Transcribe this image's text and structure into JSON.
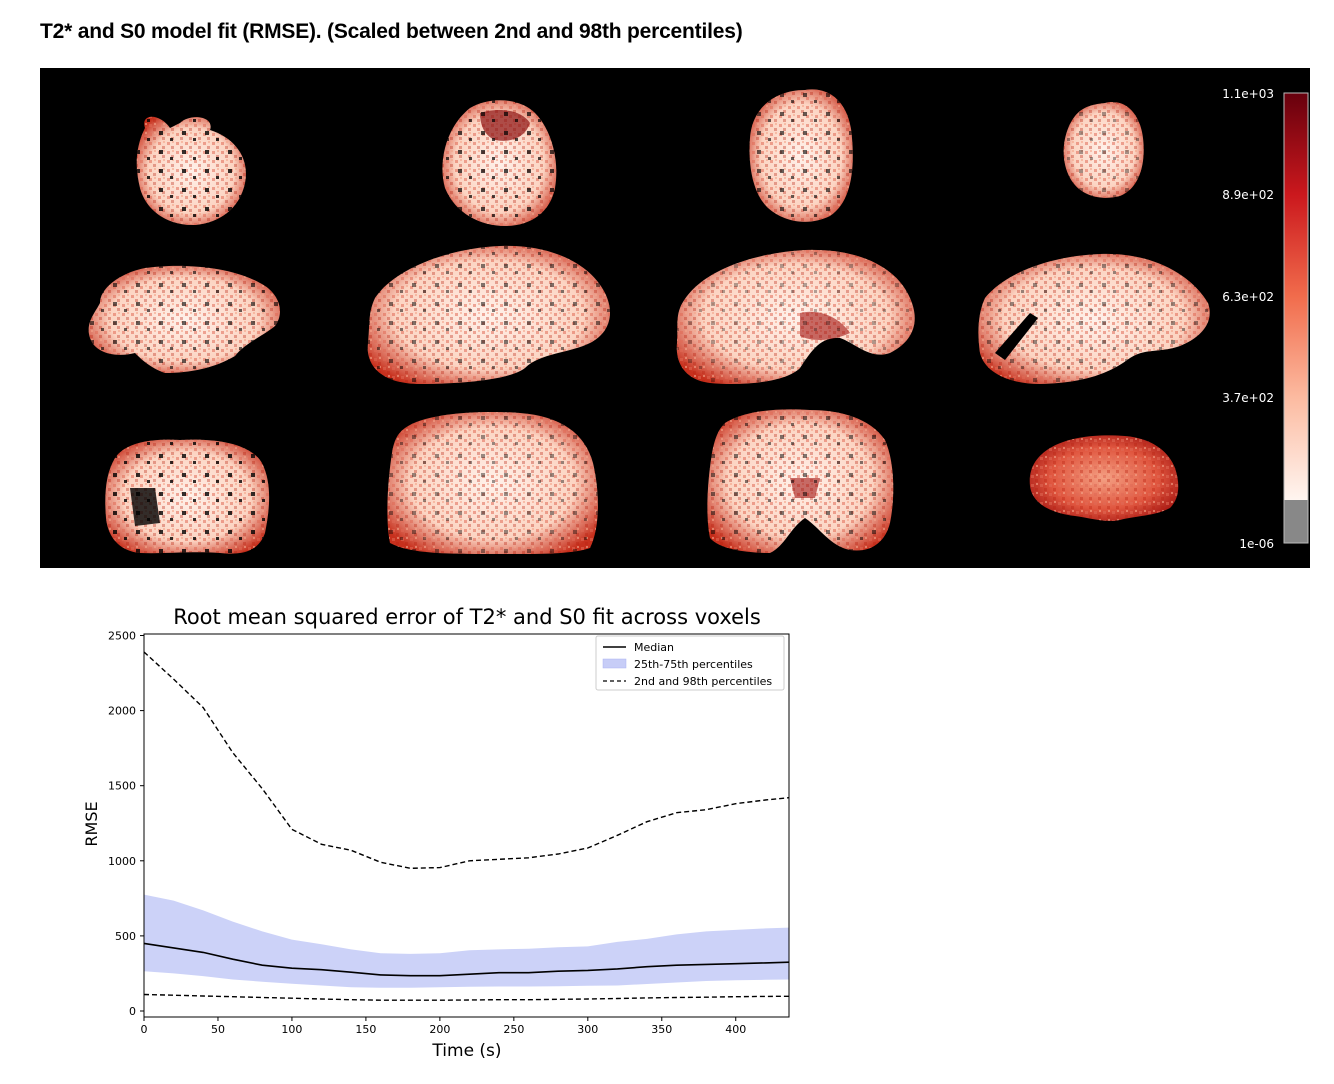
{
  "page": {
    "title": "T2* and S0 model fit (RMSE). (Scaled between 2nd and 98th percentiles)"
  },
  "brain_mosaic": {
    "colormap": "Reds",
    "colorbar_labels": [
      "1.1e+03",
      "8.9e+02",
      "6.3e+02",
      "3.7e+02",
      "1e-06"
    ],
    "colors": {
      "background": "#000000",
      "dark_red": "#67000d",
      "mid_red": "#cb181d",
      "light": "#fff5f0",
      "masked": "#888888"
    },
    "rows": [
      "axial",
      "sagittal",
      "coronal"
    ],
    "columns": 4
  },
  "chart_data": {
    "type": "line",
    "title": "Root mean squared error of T2* and S0 fit across voxels",
    "xlabel": "Time (s)",
    "ylabel": "RMSE",
    "xlim": [
      0,
      436
    ],
    "ylim": [
      -40,
      2510
    ],
    "xticks": [
      0,
      50,
      100,
      150,
      200,
      250,
      300,
      350,
      400
    ],
    "yticks": [
      0,
      500,
      1000,
      1500,
      2000,
      2500
    ],
    "grid": false,
    "legend_position": "top-right",
    "legend": [
      "Median",
      "25th-75th percentiles",
      "2nd and 98th percentiles"
    ],
    "x": [
      0,
      20,
      40,
      60,
      80,
      100,
      120,
      140,
      160,
      180,
      200,
      220,
      240,
      260,
      280,
      300,
      320,
      340,
      360,
      380,
      400,
      420,
      436
    ],
    "series": [
      {
        "name": "Median",
        "style": "solid",
        "color": "#000000",
        "values": [
          450,
          420,
          390,
          345,
          305,
          285,
          275,
          258,
          240,
          235,
          235,
          245,
          255,
          255,
          265,
          270,
          280,
          295,
          305,
          310,
          315,
          320,
          325
        ]
      },
      {
        "name": "25th percentile",
        "style": "band-lower",
        "color": "#c7cdf7",
        "values": [
          265,
          250,
          232,
          210,
          195,
          182,
          170,
          158,
          155,
          155,
          158,
          162,
          163,
          163,
          165,
          168,
          170,
          180,
          190,
          200,
          205,
          208,
          210
        ]
      },
      {
        "name": "75th percentile",
        "style": "band-upper",
        "color": "#c7cdf7",
        "values": [
          775,
          735,
          670,
          595,
          530,
          475,
          445,
          410,
          385,
          380,
          385,
          405,
          410,
          415,
          425,
          430,
          460,
          480,
          510,
          530,
          540,
          550,
          555
        ]
      },
      {
        "name": "2nd percentile",
        "style": "dashed",
        "color": "#000000",
        "values": [
          110,
          105,
          100,
          95,
          90,
          85,
          80,
          75,
          72,
          72,
          72,
          73,
          75,
          75,
          78,
          80,
          83,
          87,
          90,
          92,
          95,
          97,
          98
        ]
      },
      {
        "name": "98th percentile",
        "style": "dashed",
        "color": "#000000",
        "values": [
          2390,
          2210,
          2020,
          1720,
          1480,
          1210,
          1110,
          1070,
          990,
          950,
          955,
          1000,
          1010,
          1020,
          1045,
          1085,
          1170,
          1260,
          1320,
          1340,
          1380,
          1405,
          1420
        ]
      }
    ]
  }
}
